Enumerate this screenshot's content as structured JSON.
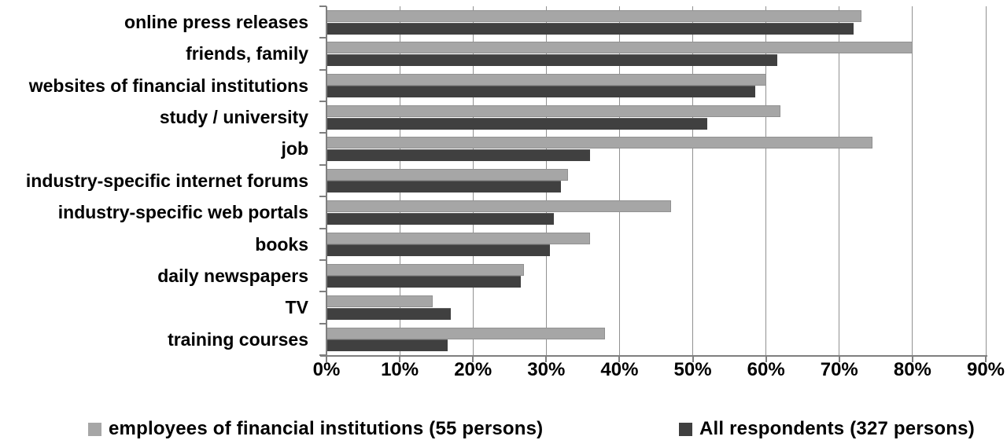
{
  "chart_data": {
    "type": "bar",
    "orientation": "horizontal",
    "title": "",
    "categories": [
      "online press releases",
      "friends, family",
      "websites of financial institutions",
      "study / university",
      "job",
      "industry-specific internet forums",
      "industry-specific web portals",
      "books",
      "daily newspapers",
      "TV",
      "training courses"
    ],
    "series": [
      {
        "name": "employees of financial institutions (55 persons)",
        "color": "#a6a6a6",
        "values": [
          73,
          80,
          60,
          62,
          74.5,
          33,
          47,
          36,
          27,
          14.5,
          38
        ]
      },
      {
        "name": "All respondents (327 persons)",
        "color": "#404040",
        "values": [
          72,
          61.5,
          58.5,
          52,
          36,
          32,
          31,
          30.5,
          26.5,
          17,
          16.5
        ]
      }
    ],
    "x_axis": {
      "min": 0,
      "max": 90,
      "step": 10,
      "tick_labels": [
        "0%",
        "10%",
        "20%",
        "30%",
        "40%",
        "50%",
        "60%",
        "70%",
        "80%",
        "90%"
      ]
    },
    "grid": true,
    "legend_position": "bottom",
    "colors": {
      "gridline": "#919191",
      "axis": "#7f7f7f",
      "text": "#000000",
      "background": "#ffffff"
    }
  }
}
